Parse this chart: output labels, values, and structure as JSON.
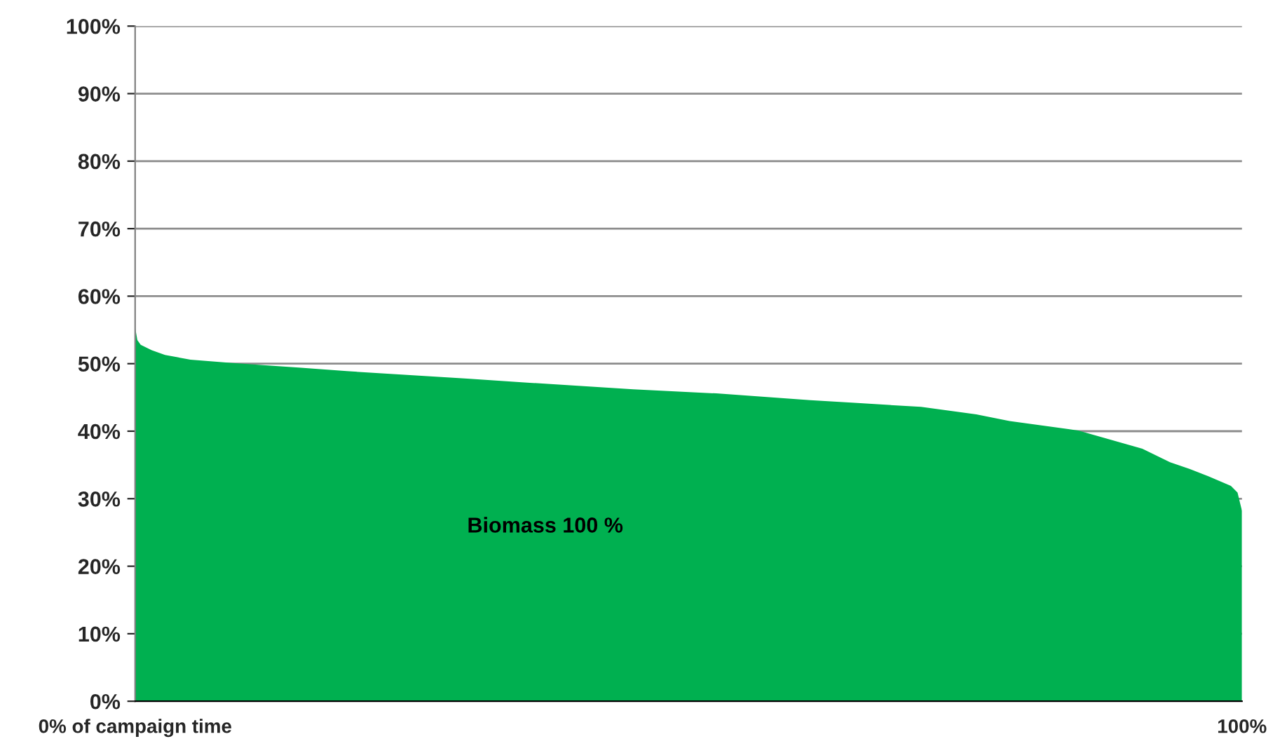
{
  "chart_data": {
    "type": "area",
    "x": [
      0,
      0.2,
      0.5,
      1.5,
      2.7,
      5,
      8.8,
      15,
      19.1,
      30,
      35.4,
      45,
      52.5,
      61,
      65,
      71,
      76,
      79,
      85.2,
      91,
      93.5,
      95.3,
      97,
      99,
      99.6,
      100
    ],
    "series": [
      {
        "name": "Biomass 100 %",
        "color": "#00b050",
        "values": [
          55.4,
          53.5,
          52.8,
          52.0,
          51.3,
          50.6,
          50.1,
          49.4,
          48.9,
          47.8,
          47.2,
          46.2,
          45.6,
          44.6,
          44.2,
          43.6,
          42.5,
          41.5,
          40.1,
          37.4,
          35.4,
          34.4,
          33.3,
          31.9,
          30.9,
          28.2
        ]
      }
    ],
    "xlim": [
      0,
      100
    ],
    "xticks": [
      {
        "value": 0,
        "label": "0% of campaign time"
      },
      {
        "value": 100,
        "label": "100%"
      }
    ],
    "ylim": [
      0,
      100
    ],
    "yticks": [
      {
        "value": 0,
        "label": "0%"
      },
      {
        "value": 10,
        "label": "10%"
      },
      {
        "value": 20,
        "label": "20%"
      },
      {
        "value": 30,
        "label": "30%"
      },
      {
        "value": 40,
        "label": "40%"
      },
      {
        "value": 50,
        "label": "50%"
      },
      {
        "value": 60,
        "label": "60%"
      },
      {
        "value": 70,
        "label": "70%"
      },
      {
        "value": 80,
        "label": "80%"
      },
      {
        "value": 90,
        "label": "90%"
      },
      {
        "value": 100,
        "label": "100%"
      }
    ],
    "grid": "y"
  }
}
